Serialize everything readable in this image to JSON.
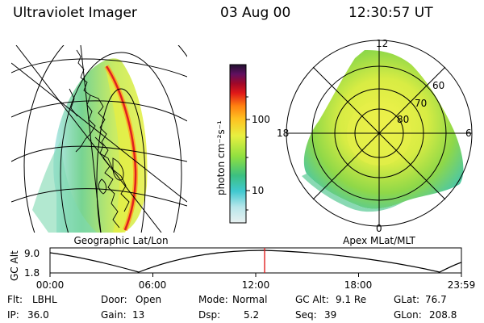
{
  "header": {
    "instrument": "Ultraviolet Imager",
    "date": "03 Aug 00",
    "time": "12:30:57 UT"
  },
  "left_panel": {
    "caption": "Geographic Lat/Lon"
  },
  "right_panel": {
    "caption": "Apex MLat/MLT",
    "mlt_labels": [
      "12",
      "18",
      "6",
      "0"
    ],
    "lat_labels": [
      "60",
      "70",
      "80"
    ]
  },
  "colorbar": {
    "unit_label": "photon cm⁻²s⁻¹",
    "ticks": [
      "100",
      "10"
    ]
  },
  "altitude_plot": {
    "ylabel": "GC Alt",
    "yticks": [
      "9.0",
      "1.8"
    ],
    "xticks": [
      "00:00",
      "06:00",
      "12:00",
      "18:00",
      "23:59"
    ],
    "marker_hour": 12.52
  },
  "info": {
    "row1": [
      {
        "key": "Flt:",
        "value": "LBHL"
      },
      {
        "key": "Door:",
        "value": "Open"
      },
      {
        "key": "Mode:",
        "value": "Normal"
      },
      {
        "key": "GC Alt:",
        "value": "9.1 Re"
      },
      {
        "key": "GLat:",
        "value": "76.7"
      }
    ],
    "row2": [
      {
        "key": "IP:",
        "value": "36.0"
      },
      {
        "key": "Gain:",
        "value": "13"
      },
      {
        "key": "Dsp:",
        "value": "5.2"
      },
      {
        "key": "Seq:",
        "value": "39"
      },
      {
        "key": "GLon:",
        "value": "208.8"
      }
    ]
  }
}
